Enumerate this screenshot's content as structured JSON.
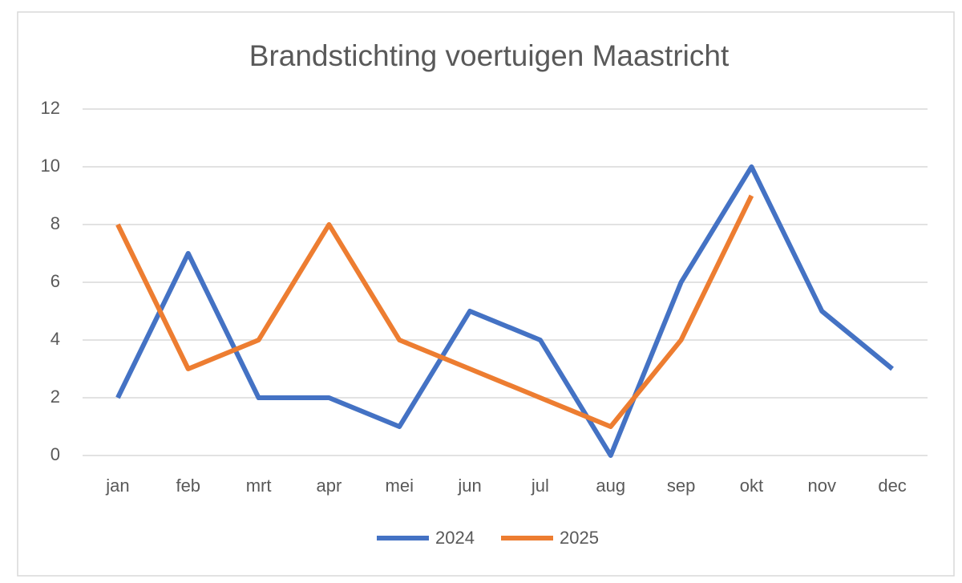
{
  "chart_data": {
    "type": "line",
    "title": "Brandstichting voertuigen Maastricht",
    "categories": [
      "jan",
      "feb",
      "mrt",
      "apr",
      "mei",
      "jun",
      "jul",
      "aug",
      "sep",
      "okt",
      "nov",
      "dec"
    ],
    "series": [
      {
        "name": "2024",
        "color": "#4472c4",
        "values": [
          2,
          7,
          2,
          2,
          1,
          5,
          4,
          0,
          6,
          10,
          5,
          3
        ]
      },
      {
        "name": "2025",
        "color": "#ed7d31",
        "values": [
          8,
          3,
          4,
          8,
          4,
          3,
          2,
          1,
          4,
          9,
          null,
          null
        ]
      }
    ],
    "ylim": [
      0,
      12
    ],
    "yticks": [
      0,
      2,
      4,
      6,
      8,
      10,
      12
    ],
    "grid": true,
    "legend": "bottom"
  }
}
